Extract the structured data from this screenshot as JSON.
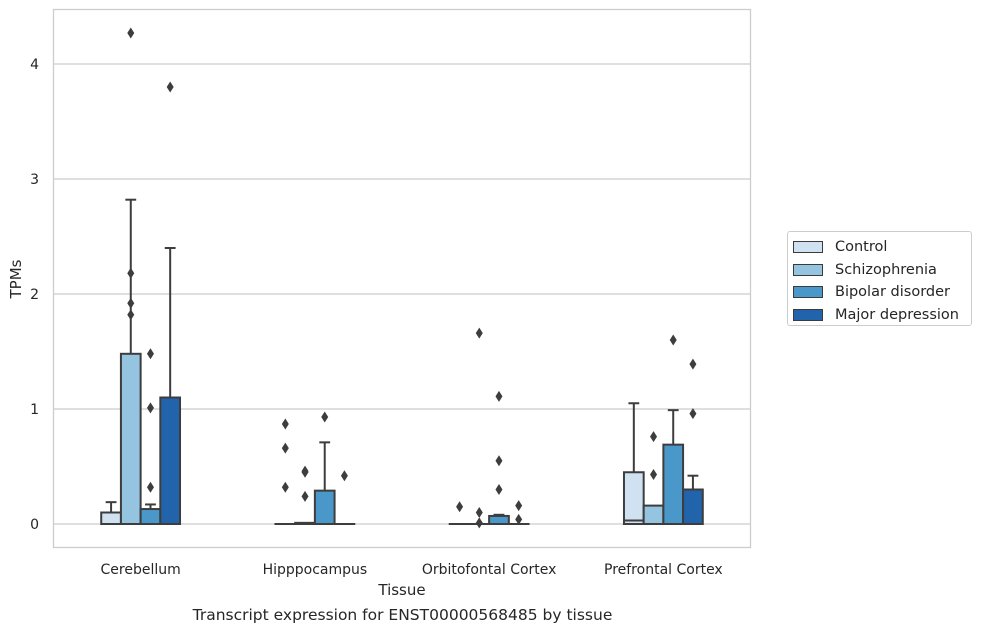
{
  "caption": "Transcript expression for ENST00000568485 by tissue",
  "chart_data": {
    "type": "box",
    "xlabel": "Tissue",
    "ylabel": "TPMs",
    "ylim": [
      -0.2,
      4.48
    ],
    "yticks": [
      0,
      1,
      2,
      3,
      4
    ],
    "grid": "horizontal",
    "legend_position": "right",
    "categories": [
      "Cerebellum",
      "Hipppocampus",
      "Orbitofontal Cortex",
      "Prefrontal Cortex"
    ],
    "series": [
      {
        "name": "Control",
        "color": "#d0e1f2",
        "boxes": [
          {
            "q1": 0,
            "median": 0,
            "q3": 0.1,
            "whisker_low": 0,
            "whisker_high": 0.19,
            "outliers": []
          },
          {
            "q1": 0,
            "median": 0,
            "q3": 0,
            "whisker_low": 0,
            "whisker_high": 0,
            "outliers": [
              0.87,
              0.66,
              0.32
            ]
          },
          {
            "q1": 0,
            "median": 0,
            "q3": 0,
            "whisker_low": 0,
            "whisker_high": 0,
            "outliers": [
              0.15
            ]
          },
          {
            "q1": 0,
            "median": 0.03,
            "q3": 0.45,
            "whisker_low": 0,
            "whisker_high": 1.05,
            "outliers": []
          }
        ]
      },
      {
        "name": "Schizophrenia",
        "color": "#94c4df",
        "boxes": [
          {
            "q1": 0,
            "median": 0,
            "q3": 1.48,
            "whisker_low": 0,
            "whisker_high": 2.82,
            "outliers": [
              4.27,
              2.18,
              1.92,
              1.82
            ]
          },
          {
            "q1": 0,
            "median": 0,
            "q3": 0.01,
            "whisker_low": 0,
            "whisker_high": 0.01,
            "outliers": [
              0.46,
              0.45,
              0.24
            ]
          },
          {
            "q1": 0,
            "median": 0,
            "q3": 0,
            "whisker_low": 0,
            "whisker_high": 0,
            "outliers": [
              1.66,
              0.1,
              0.01
            ]
          },
          {
            "q1": 0,
            "median": 0,
            "q3": 0.16,
            "whisker_low": 0,
            "whisker_high": 0.16,
            "outliers": [
              0.76,
              0.43
            ]
          }
        ]
      },
      {
        "name": "Bipolar disorder",
        "color": "#4a98c9",
        "boxes": [
          {
            "q1": 0,
            "median": 0,
            "q3": 0.13,
            "whisker_low": 0,
            "whisker_high": 0.17,
            "outliers": [
              1.48,
              1.01,
              0.32
            ]
          },
          {
            "q1": 0,
            "median": 0,
            "q3": 0.29,
            "whisker_low": 0,
            "whisker_high": 0.71,
            "outliers": [
              0.93
            ]
          },
          {
            "q1": 0,
            "median": 0,
            "q3": 0.07,
            "whisker_low": 0,
            "whisker_high": 0.08,
            "outliers": [
              1.11,
              0.55,
              0.3
            ]
          },
          {
            "q1": 0,
            "median": 0,
            "q3": 0.69,
            "whisker_low": 0,
            "whisker_high": 0.99,
            "outliers": [
              1.6
            ]
          }
        ]
      },
      {
        "name": "Major depression",
        "color": "#2164ab",
        "boxes": [
          {
            "q1": 0,
            "median": 0,
            "q3": 1.1,
            "whisker_low": 0,
            "whisker_high": 2.4,
            "outliers": [
              3.8
            ]
          },
          {
            "q1": 0,
            "median": 0,
            "q3": 0,
            "whisker_low": 0,
            "whisker_high": 0,
            "outliers": [
              0.42
            ]
          },
          {
            "q1": 0,
            "median": 0,
            "q3": 0,
            "whisker_low": 0,
            "whisker_high": 0,
            "outliers": [
              0.16,
              0.04
            ]
          },
          {
            "q1": 0,
            "median": 0,
            "q3": 0.3,
            "whisker_low": 0,
            "whisker_high": 0.42,
            "outliers": [
              1.39,
              0.96
            ]
          }
        ]
      }
    ]
  }
}
